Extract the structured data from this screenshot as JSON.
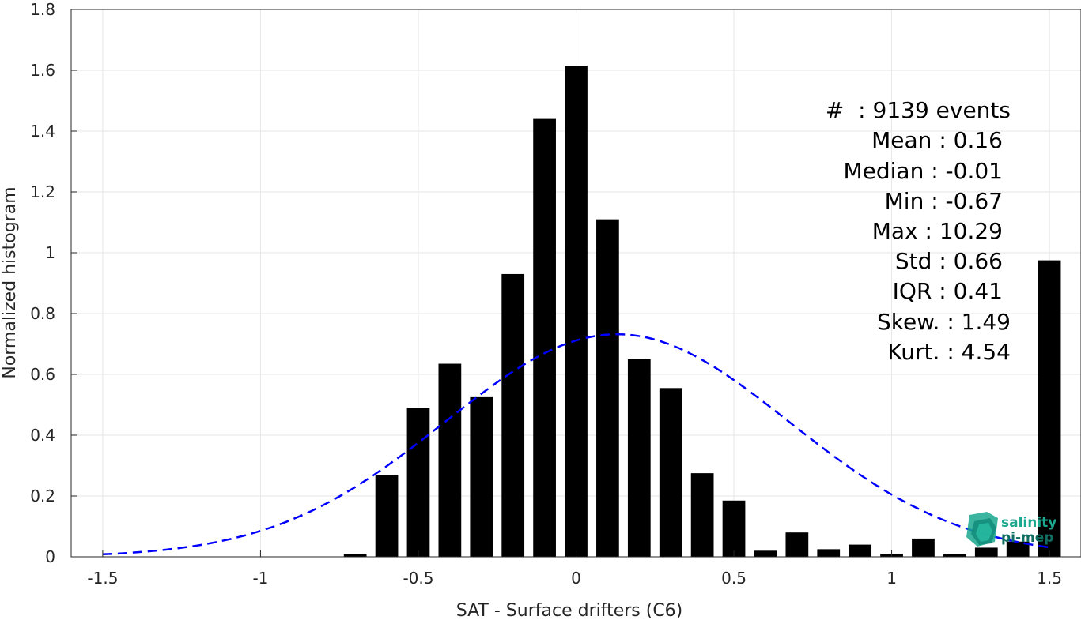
{
  "chart_data": {
    "type": "bar",
    "xlabel": "SAT - Surface drifters (C6)",
    "ylabel": "Normalized histogram",
    "xlim": [
      -1.6,
      1.6
    ],
    "ylim": [
      0,
      1.8
    ],
    "xticks": [
      "-1.5",
      "-1",
      "-0.5",
      "0",
      "0.5",
      "1",
      "1.5"
    ],
    "yticks": [
      "0",
      "0.2",
      "0.4",
      "0.6",
      "0.8",
      "1",
      "1.2",
      "1.4",
      "1.6",
      "1.8"
    ],
    "grid": true,
    "bar_color": "#000000",
    "bins": [
      {
        "x": -0.7,
        "value": 0.01
      },
      {
        "x": -0.6,
        "value": 0.27
      },
      {
        "x": -0.5,
        "value": 0.49
      },
      {
        "x": -0.4,
        "value": 0.635
      },
      {
        "x": -0.3,
        "value": 0.525
      },
      {
        "x": -0.2,
        "value": 0.93
      },
      {
        "x": -0.1,
        "value": 1.44
      },
      {
        "x": 0.0,
        "value": 1.615
      },
      {
        "x": 0.1,
        "value": 1.11
      },
      {
        "x": 0.2,
        "value": 0.65
      },
      {
        "x": 0.3,
        "value": 0.555
      },
      {
        "x": 0.4,
        "value": 0.275
      },
      {
        "x": 0.5,
        "value": 0.185
      },
      {
        "x": 0.6,
        "value": 0.02
      },
      {
        "x": 0.7,
        "value": 0.08
      },
      {
        "x": 0.8,
        "value": 0.025
      },
      {
        "x": 0.9,
        "value": 0.04
      },
      {
        "x": 1.0,
        "value": 0.01
      },
      {
        "x": 1.1,
        "value": 0.06
      },
      {
        "x": 1.2,
        "value": 0.008
      },
      {
        "x": 1.3,
        "value": 0.03
      },
      {
        "x": 1.4,
        "value": 0.05
      },
      {
        "x": 1.5,
        "value": 0.975
      }
    ],
    "fit_curve": {
      "type": "gaussian",
      "mean": 0.13,
      "std": 0.545,
      "peak": 0.732,
      "x_range": [
        -1.5,
        1.5
      ],
      "color": "#0000ff",
      "style": "dashed"
    }
  },
  "stats": {
    "events": "#  : 9139 events",
    "mean": "Mean : 0.16",
    "median": "Median : -0.01",
    "min": "Min : -0.67",
    "max": "Max : 10.29",
    "std": "Std : 0.66",
    "iqr": "IQR : 0.41",
    "skew": "Skew. : 1.49",
    "kurt": "Kurt. : 4.54"
  },
  "logo": {
    "line1": "salinity",
    "line2": "pi-mep",
    "color1": "#1aa88f",
    "color2": "#0f6e61"
  }
}
